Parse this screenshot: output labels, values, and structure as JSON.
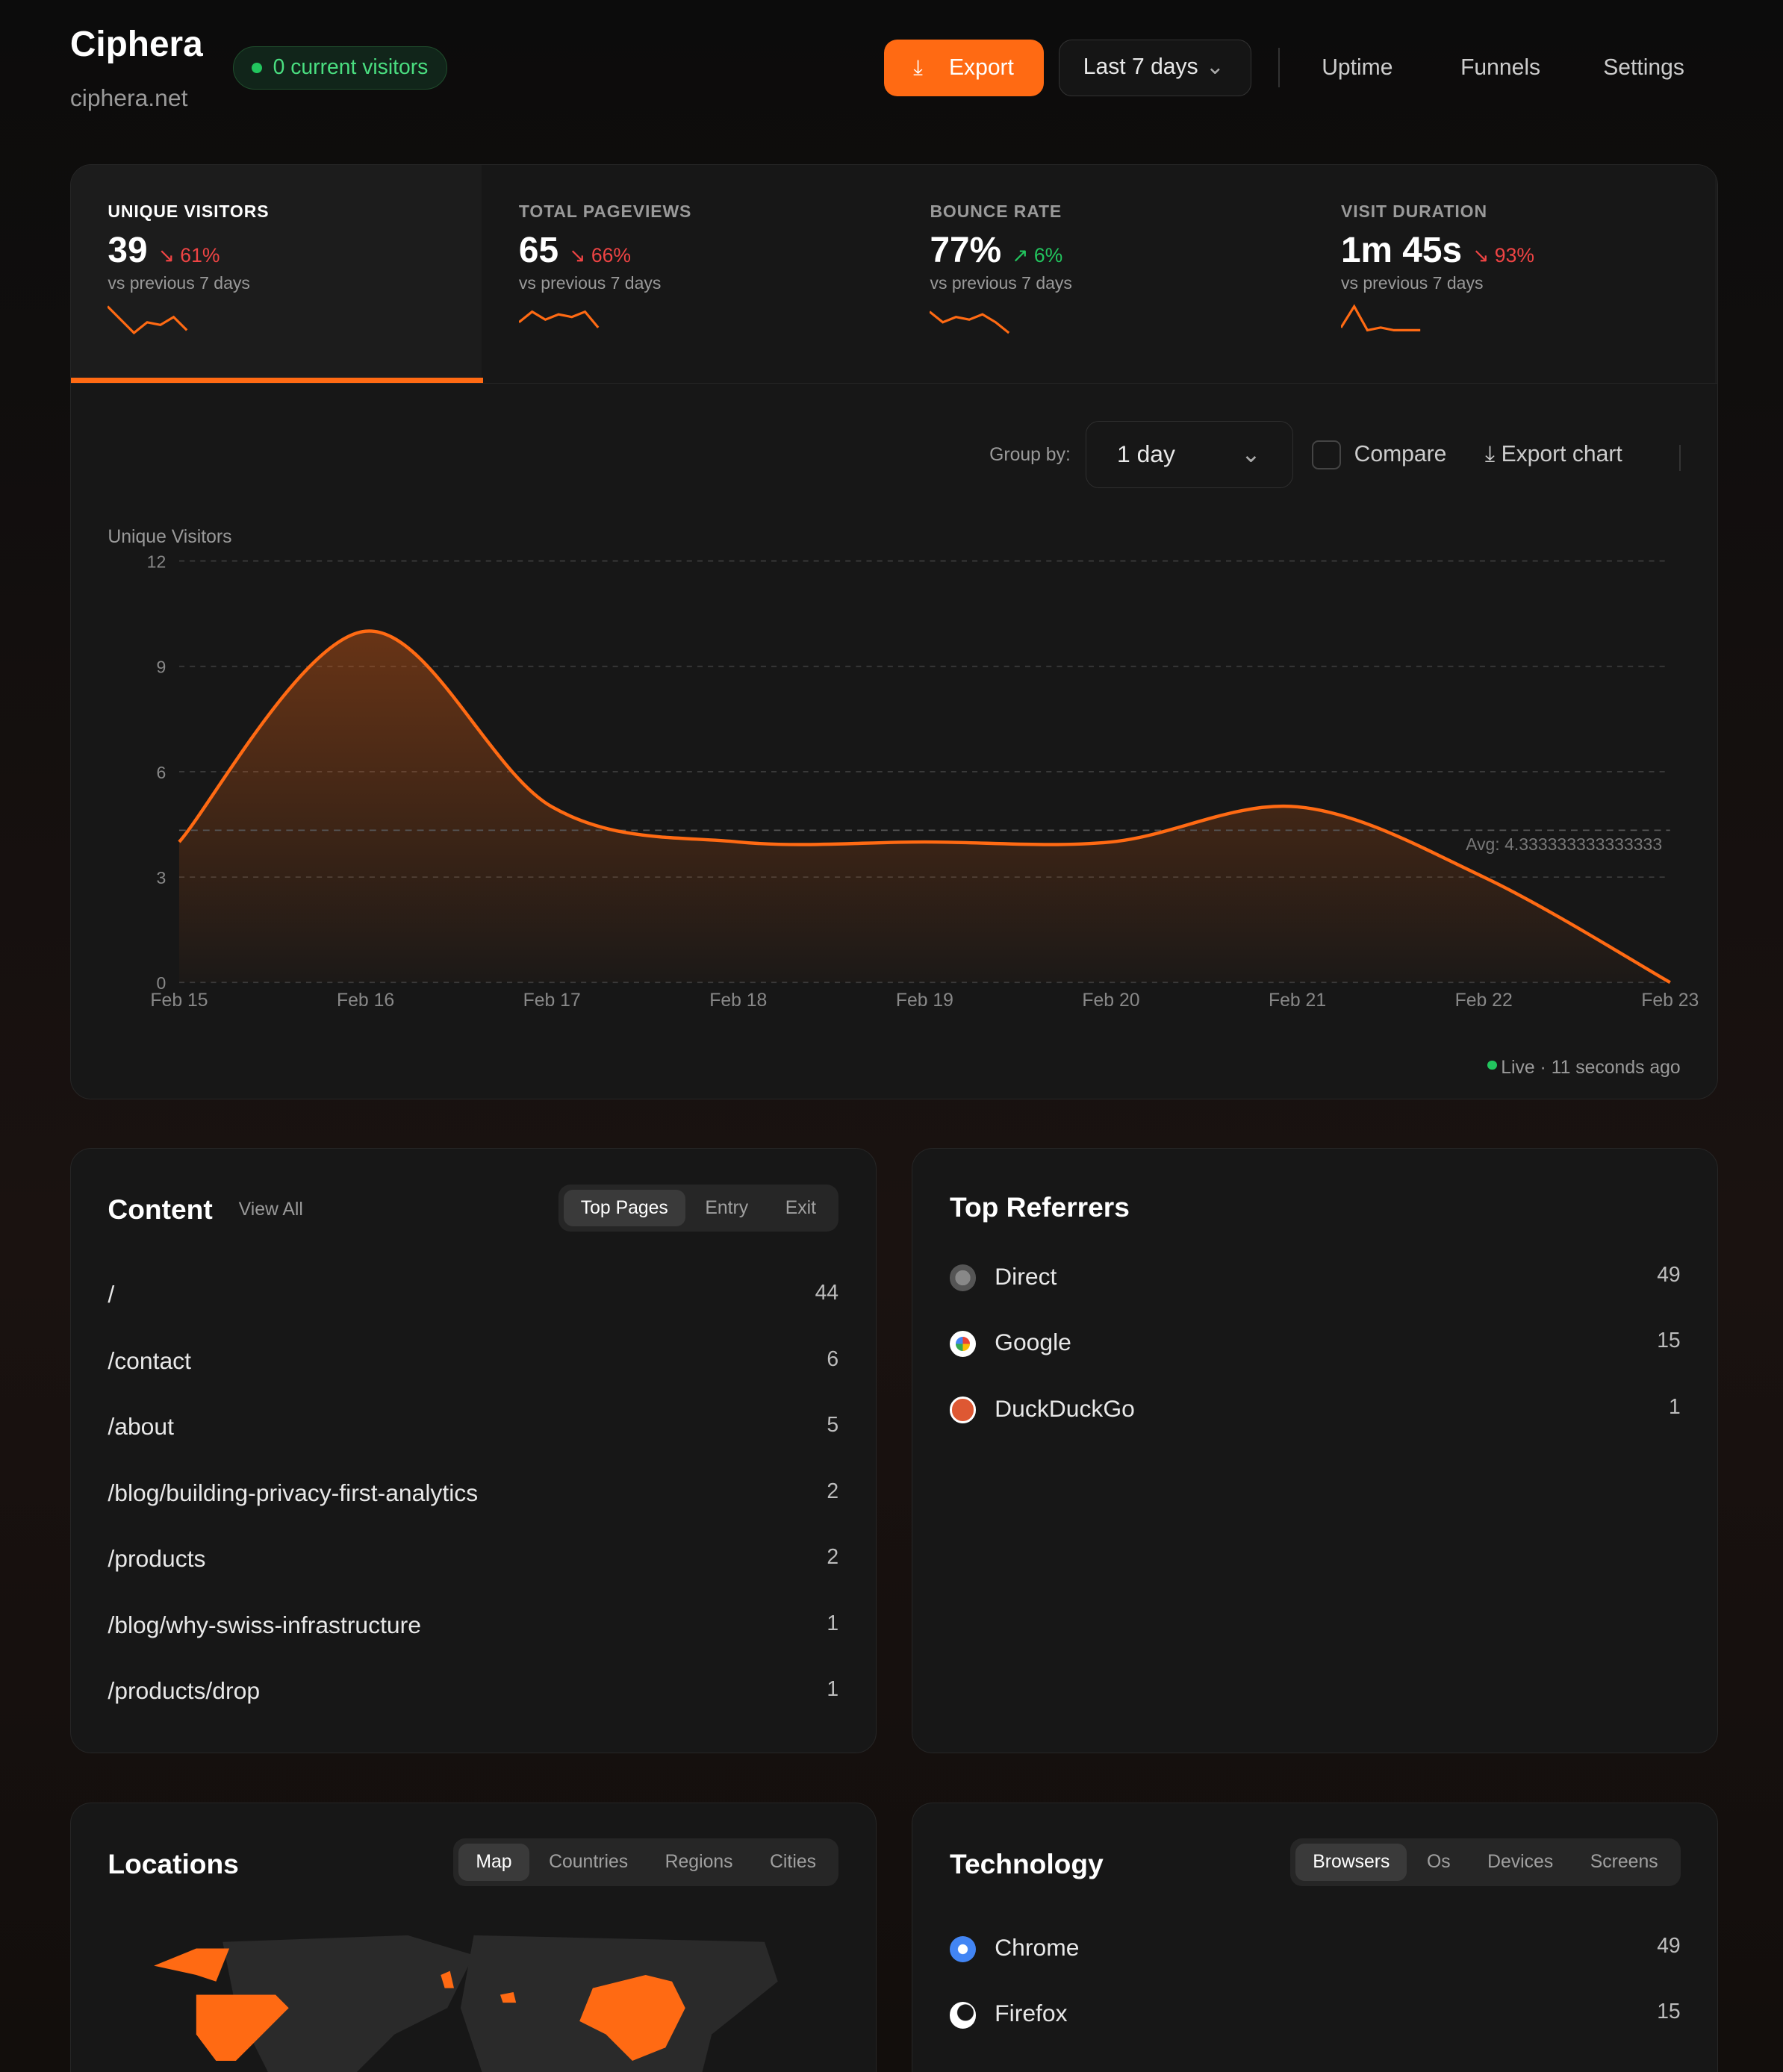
{
  "header": {
    "title": "Ciphera",
    "domain": "ciphera.net",
    "visitors_badge": "0 current visitors",
    "export": "Export",
    "range": "Last 7 days",
    "nav": [
      "Uptime",
      "Funnels",
      "Settings"
    ]
  },
  "stats": [
    {
      "label": "UNIQUE VISITORS",
      "value": "39",
      "delta": "↘ 61%",
      "trend": "down",
      "prev": "vs previous 7 days",
      "active": true
    },
    {
      "label": "TOTAL PAGEVIEWS",
      "value": "65",
      "delta": "↘ 66%",
      "trend": "down",
      "prev": "vs previous 7 days"
    },
    {
      "label": "BOUNCE RATE",
      "value": "77%",
      "delta": "↗ 6%",
      "trend": "up",
      "prev": "vs previous 7 days"
    },
    {
      "label": "VISIT DURATION",
      "value": "1m 45s",
      "delta": "↘ 93%",
      "trend": "down",
      "prev": "vs previous 7 days"
    }
  ],
  "chart_controls": {
    "group_by_label": "Group by:",
    "group_by": "1 day",
    "compare": "Compare",
    "export_chart": "Export chart",
    "live": "Live · 11 seconds ago"
  },
  "chart_data": {
    "type": "area",
    "ylabel": "Unique Visitors",
    "x": [
      "Feb 15",
      "Feb 16",
      "Feb 17",
      "Feb 18",
      "Feb 19",
      "Feb 20",
      "Feb 21",
      "Feb 22",
      "Feb 23"
    ],
    "values": [
      4,
      10,
      5,
      4,
      4,
      4,
      5,
      3,
      0
    ],
    "yticks": [
      0,
      3,
      6,
      9,
      12
    ],
    "ylim": [
      0,
      12
    ],
    "avg_label": "Avg: 4.333333333333333",
    "avg": 4.333333333333333,
    "grid": true,
    "color": "#ff6a13"
  },
  "content": {
    "title": "Content",
    "view_all": "View All",
    "tabs": [
      "Top Pages",
      "Entry",
      "Exit"
    ],
    "rows": [
      [
        "/",
        "44"
      ],
      [
        "/contact",
        "6"
      ],
      [
        "/about",
        "5"
      ],
      [
        "/blog/building-privacy-first-analytics",
        "2"
      ],
      [
        "/products",
        "2"
      ],
      [
        "/blog/why-swiss-infrastructure",
        "1"
      ],
      [
        "/products/drop",
        "1"
      ]
    ]
  },
  "referrers": {
    "title": "Top Referrers",
    "rows": [
      {
        "name": "Direct",
        "count": "49",
        "icon": "globe-icon"
      },
      {
        "name": "Google",
        "count": "15",
        "icon": "google-icon"
      },
      {
        "name": "DuckDuckGo",
        "count": "1",
        "icon": "duckduckgo-icon"
      }
    ]
  },
  "locations": {
    "title": "Locations",
    "tabs": [
      "Map",
      "Countries",
      "Regions",
      "Cities"
    ]
  },
  "technology": {
    "title": "Technology",
    "tabs": [
      "Browsers",
      "Os",
      "Devices",
      "Screens"
    ],
    "rows": [
      {
        "name": "Chrome",
        "count": "49",
        "icon": "chrome-icon"
      },
      {
        "name": "Firefox",
        "count": "15",
        "icon": "firefox-icon"
      }
    ]
  },
  "colors": {
    "accent": "#ff6a13",
    "positive": "#22c55e",
    "negative": "#ef4444"
  }
}
